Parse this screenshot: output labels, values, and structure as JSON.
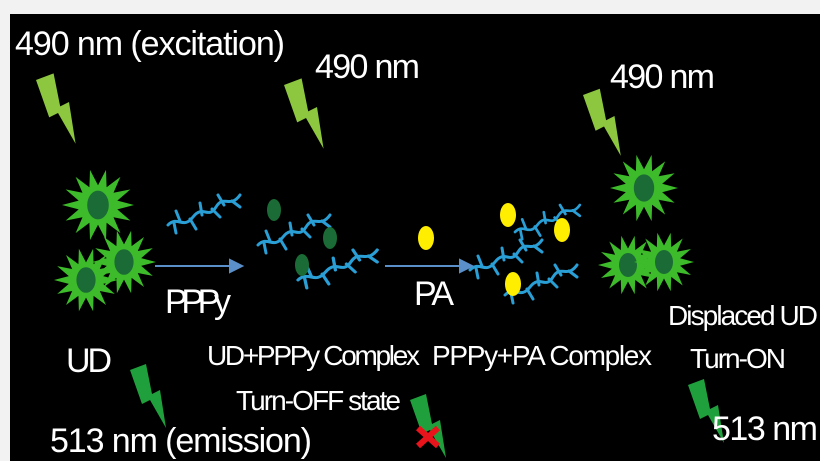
{
  "labels": {
    "excitation": "490 nm (excitation)",
    "excitation_2": "490 nm",
    "excitation_3": "490 nm",
    "ud": "UD",
    "pppy": "PPPy",
    "ud_pppy_complex": "UD+PPPy Complex",
    "turn_off": "Turn-OFF state",
    "pa": "PA",
    "pppy_pa_complex": "PPPy+PA Complex",
    "displaced_ud": "Displaced UD",
    "turn_on": "Turn-ON",
    "emission": "513 nm (emission)",
    "emission_2": "513 nm"
  }
}
